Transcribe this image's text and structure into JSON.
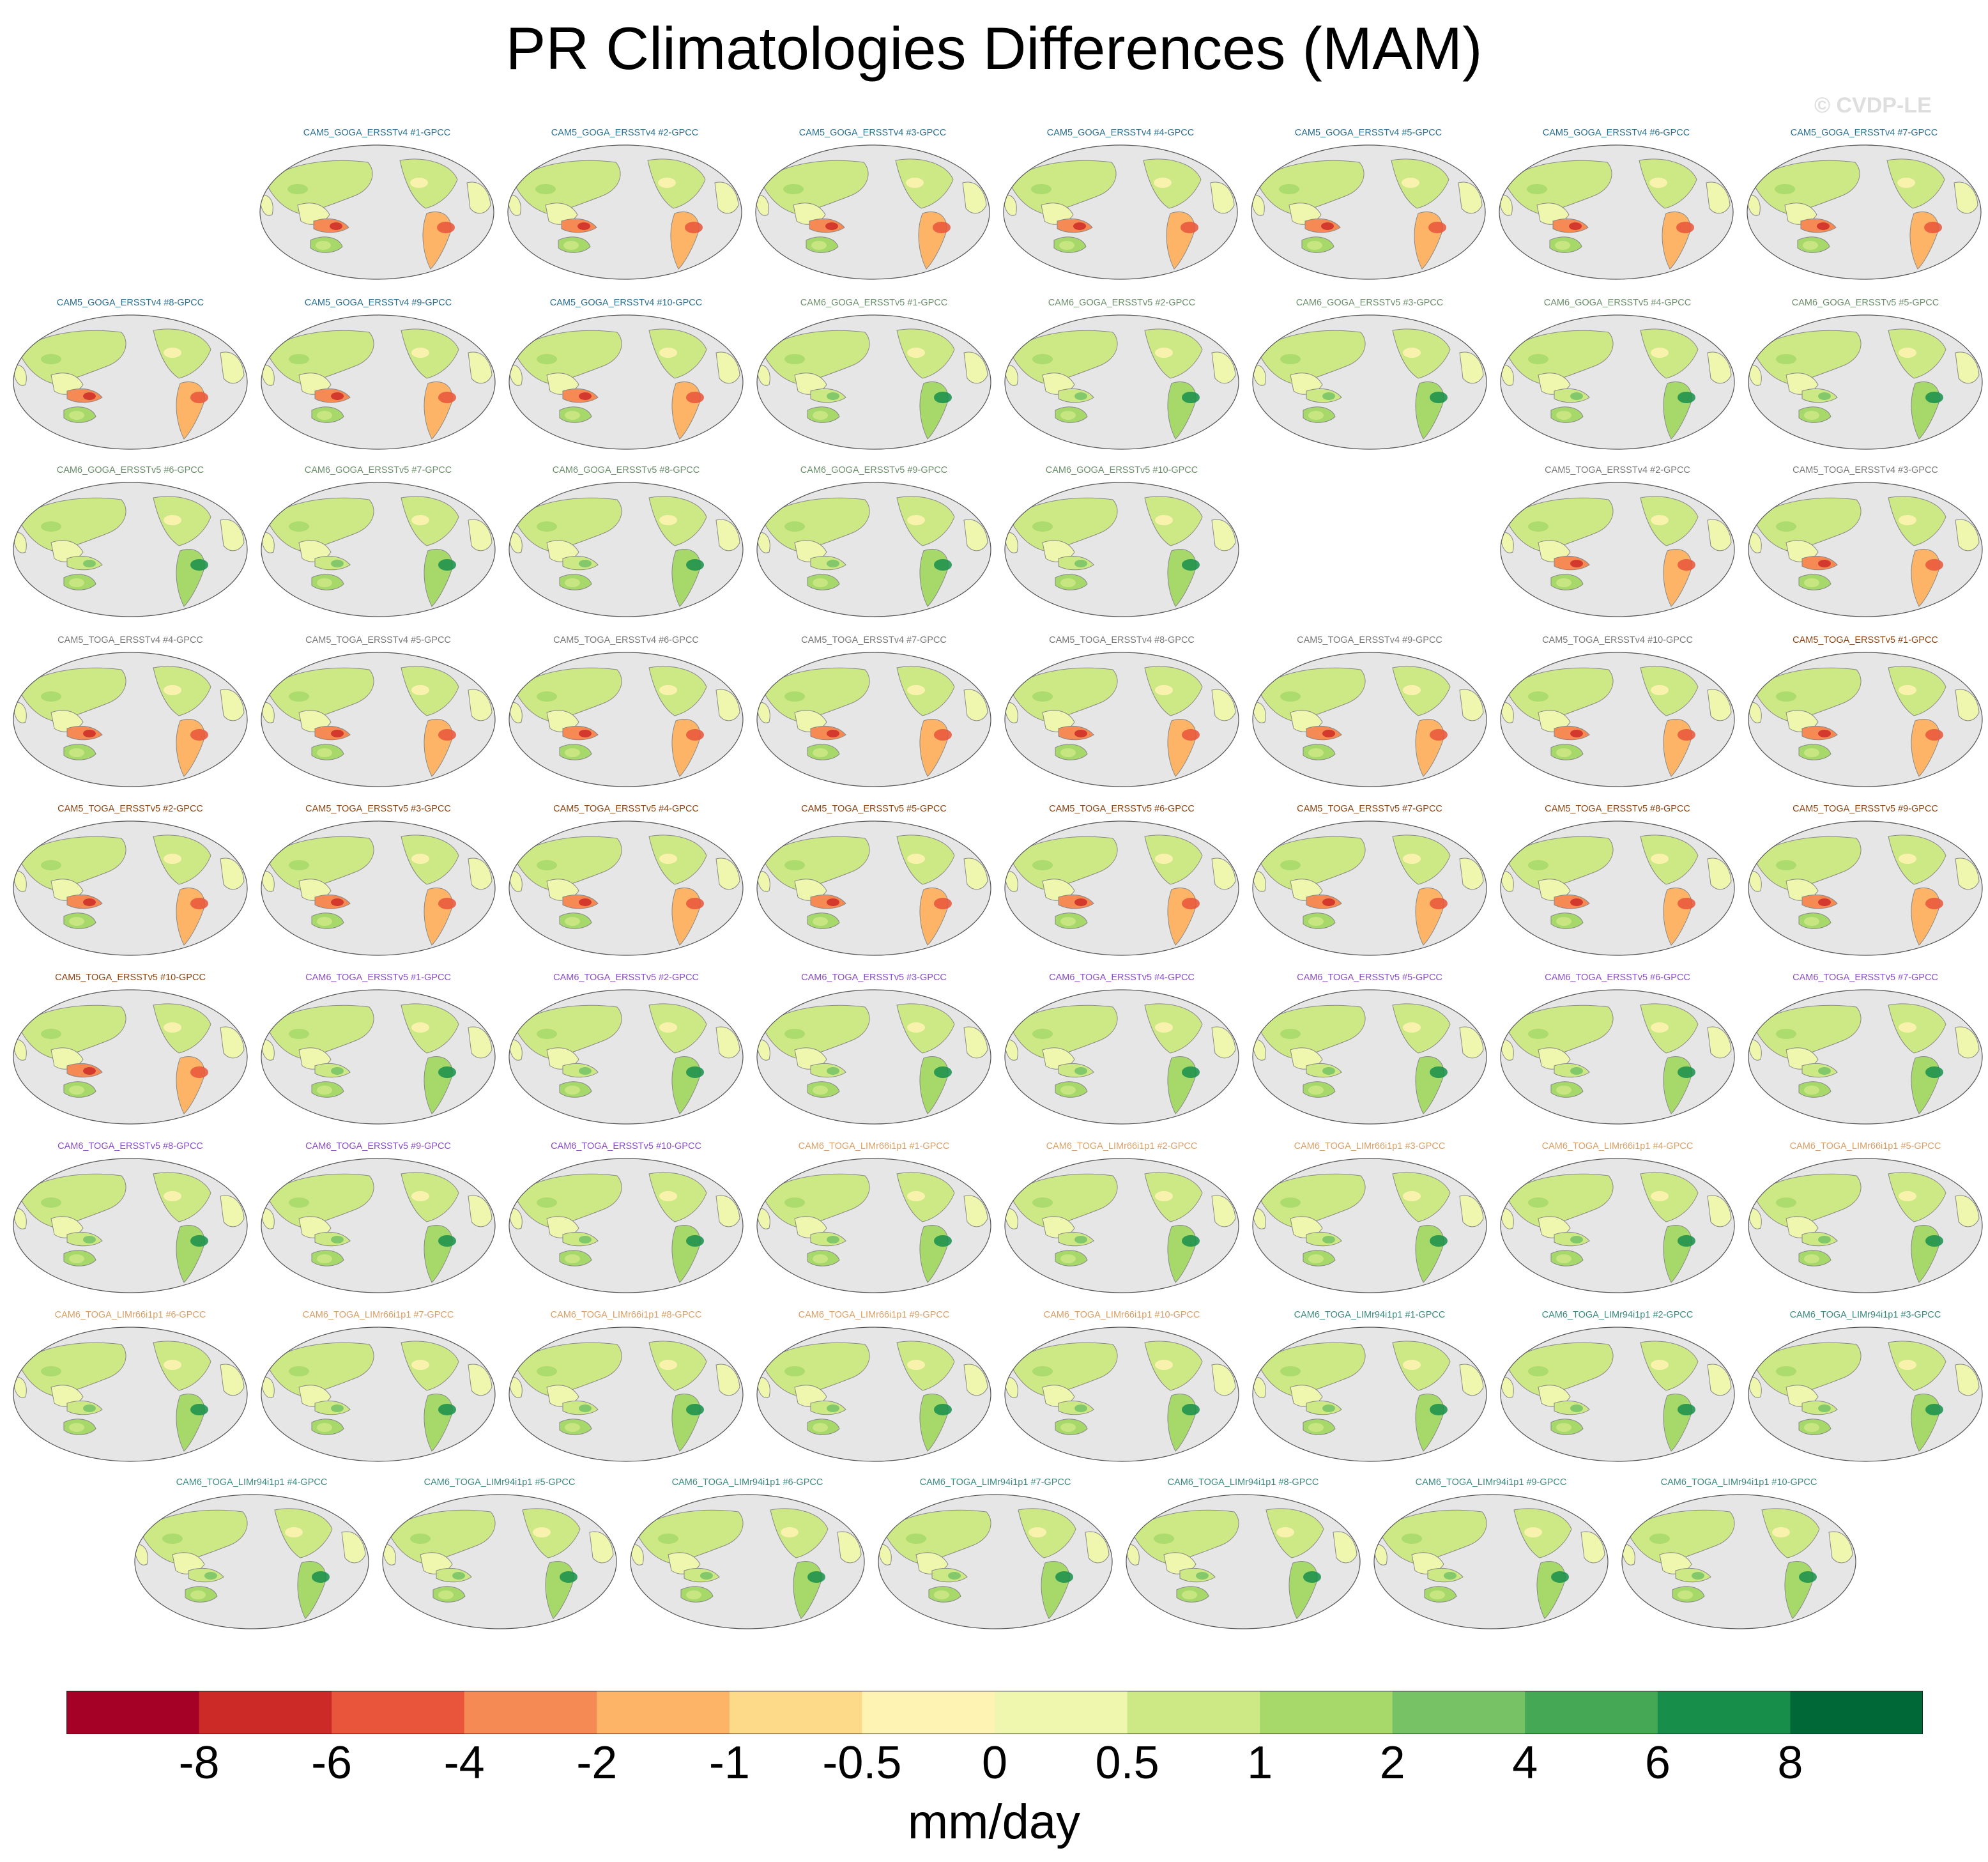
{
  "figure": {
    "title": "PR Climatologies Differences (MAM)",
    "watermark": "© CVDP-LE"
  },
  "chart_data": {
    "type": "heatmap",
    "title": "PR Climatologies Differences (MAM)",
    "projection": "robinson-global-map",
    "colorbar": {
      "units": "mm/day",
      "tick_labels": [
        "-8",
        "-6",
        "-4",
        "-2",
        "-1",
        "-0.5",
        "0",
        "0.5",
        "1",
        "2",
        "4",
        "6",
        "8"
      ],
      "levels": [
        -8,
        -6,
        -4,
        -2,
        -1,
        -0.5,
        0,
        0.5,
        1,
        2,
        4,
        6,
        8
      ],
      "colors": [
        "#a50026",
        "#cc2a27",
        "#e8553a",
        "#f68a54",
        "#fdb466",
        "#fdd98a",
        "#fff3b4",
        "#eff6ad",
        "#cde985",
        "#a6d86a",
        "#76c265",
        "#44a855",
        "#178f4b",
        "#006837"
      ]
    },
    "rows": [
      [
        "CAM5_GOGA_ERSSTv4 #1-GPCC",
        "CAM5_GOGA_ERSSTv4 #2-GPCC",
        "CAM5_GOGA_ERSSTv4 #3-GPCC",
        "CAM5_GOGA_ERSSTv4 #4-GPCC",
        "CAM5_GOGA_ERSSTv4 #5-GPCC",
        "CAM5_GOGA_ERSSTv4 #6-GPCC",
        "CAM5_GOGA_ERSSTv4 #7-GPCC"
      ],
      [
        "CAM5_GOGA_ERSSTv4 #8-GPCC",
        "CAM5_GOGA_ERSSTv4 #9-GPCC",
        "CAM5_GOGA_ERSSTv4 #10-GPCC",
        "CAM6_GOGA_ERSSTv5 #1-GPCC",
        "CAM6_GOGA_ERSSTv5 #2-GPCC",
        "CAM6_GOGA_ERSSTv5 #3-GPCC",
        "CAM6_GOGA_ERSSTv5 #4-GPCC",
        "CAM6_GOGA_ERSSTv5 #5-GPCC"
      ],
      [
        "CAM6_GOGA_ERSSTv5 #6-GPCC",
        "CAM6_GOGA_ERSSTv5 #7-GPCC",
        "CAM6_GOGA_ERSSTv5 #8-GPCC",
        "CAM6_GOGA_ERSSTv5 #9-GPCC",
        "CAM6_GOGA_ERSSTv5 #10-GPCC",
        "CAM5_TOGA_ERSSTv4 #2-GPCC",
        "CAM5_TOGA_ERSSTv4 #3-GPCC"
      ],
      [
        "CAM5_TOGA_ERSSTv4 #4-GPCC",
        "CAM5_TOGA_ERSSTv4 #5-GPCC",
        "CAM5_TOGA_ERSSTv4 #6-GPCC",
        "CAM5_TOGA_ERSSTv4 #7-GPCC",
        "CAM5_TOGA_ERSSTv4 #8-GPCC",
        "CAM5_TOGA_ERSSTv4 #9-GPCC",
        "CAM5_TOGA_ERSSTv4 #10-GPCC",
        "CAM5_TOGA_ERSSTv5 #1-GPCC"
      ],
      [
        "CAM5_TOGA_ERSSTv5 #2-GPCC",
        "CAM5_TOGA_ERSSTv5 #3-GPCC",
        "CAM5_TOGA_ERSSTv5 #4-GPCC",
        "CAM5_TOGA_ERSSTv5 #5-GPCC",
        "CAM5_TOGA_ERSSTv5 #6-GPCC",
        "CAM5_TOGA_ERSSTv5 #7-GPCC",
        "CAM5_TOGA_ERSSTv5 #8-GPCC",
        "CAM5_TOGA_ERSSTv5 #9-GPCC"
      ],
      [
        "CAM5_TOGA_ERSSTv5 #10-GPCC",
        "CAM6_TOGA_ERSSTv5 #1-GPCC",
        "CAM6_TOGA_ERSSTv5 #2-GPCC",
        "CAM6_TOGA_ERSSTv5 #3-GPCC",
        "CAM6_TOGA_ERSSTv5 #4-GPCC",
        "CAM6_TOGA_ERSSTv5 #5-GPCC",
        "CAM6_TOGA_ERSSTv5 #6-GPCC",
        "CAM6_TOGA_ERSSTv5 #7-GPCC"
      ],
      [
        "CAM6_TOGA_ERSSTv5 #8-GPCC",
        "CAM6_TOGA_ERSSTv5 #9-GPCC",
        "CAM6_TOGA_ERSSTv5 #10-GPCC",
        "CAM6_TOGA_LIMr66i1p1 #1-GPCC",
        "CAM6_TOGA_LIMr66i1p1 #2-GPCC",
        "CAM6_TOGA_LIMr66i1p1 #3-GPCC",
        "CAM6_TOGA_LIMr66i1p1 #4-GPCC",
        "CAM6_TOGA_LIMr66i1p1 #5-GPCC"
      ],
      [
        "CAM6_TOGA_LIMr66i1p1 #6-GPCC",
        "CAM6_TOGA_LIMr66i1p1 #7-GPCC",
        "CAM6_TOGA_LIMr66i1p1 #8-GPCC",
        "CAM6_TOGA_LIMr66i1p1 #9-GPCC",
        "CAM6_TOGA_LIMr66i1p1 #10-GPCC",
        "CAM6_TOGA_LIMr94i1p1 #1-GPCC",
        "CAM6_TOGA_LIMr94i1p1 #2-GPCC",
        "CAM6_TOGA_LIMr94i1p1 #3-GPCC"
      ],
      [
        "CAM6_TOGA_LIMr94i1p1 #4-GPCC",
        "CAM6_TOGA_LIMr94i1p1 #5-GPCC",
        "CAM6_TOGA_LIMr94i1p1 #6-GPCC",
        "CAM6_TOGA_LIMr94i1p1 #7-GPCC",
        "CAM6_TOGA_LIMr94i1p1 #8-GPCC",
        "CAM6_TOGA_LIMr94i1p1 #9-GPCC",
        "CAM6_TOGA_LIMr94i1p1 #10-GPCC"
      ]
    ],
    "ensemble_colors": {
      "CAM5_GOGA_ERSSTv4": "#2a6f8f",
      "CAM6_GOGA_ERSSTv5": "#6b8f6b",
      "CAM5_TOGA_ERSSTv4": "#7a7a7a",
      "CAM5_TOGA_ERSSTv5": "#8b4513",
      "CAM6_TOGA_ERSSTv5": "#8a4fc4",
      "CAM6_TOGA_LIMr66i1p1": "#d9a068",
      "CAM6_TOGA_LIMr94i1p1": "#3d8a80"
    }
  }
}
